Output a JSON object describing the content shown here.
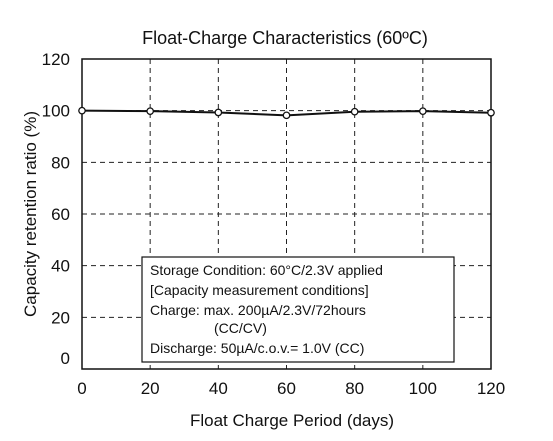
{
  "chart_data": {
    "type": "line",
    "title": "Float-Charge Characteristics (60ºC)",
    "xlabel": "Float Charge Period (days)",
    "ylabel": "Capacity retention ratio (%)",
    "xlim": [
      0,
      120
    ],
    "ylim": [
      0,
      120
    ],
    "x_ticks": [
      "0",
      "20",
      "40",
      "60",
      "80",
      "100",
      "120"
    ],
    "y_ticks": [
      "0",
      "20",
      "40",
      "60",
      "80",
      "100",
      "120"
    ],
    "grid": true,
    "series": [
      {
        "x": [
          0,
          20,
          40,
          60,
          80,
          100,
          120
        ],
        "y": [
          100,
          99.8,
          99.3,
          98.2,
          99.6,
          99.8,
          99.2
        ],
        "color": "#111111",
        "marker": "open-circle"
      }
    ],
    "annotation_lines": [
      "Storage Condition: 60°C/2.3V applied",
      "[Capacity measurement conditions]",
      "Charge: max. 200µA/2.3V/72hours",
      "(CC/CV)",
      "Discharge: 50µA/c.o.v.= 1.0V (CC)"
    ]
  }
}
